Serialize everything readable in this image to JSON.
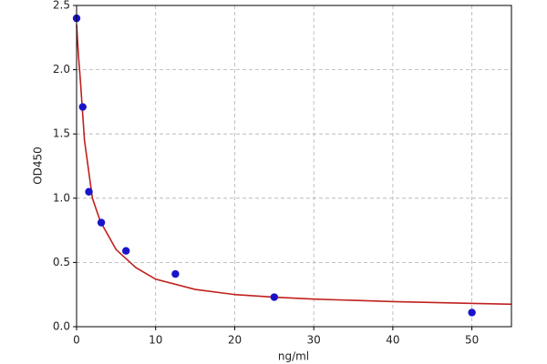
{
  "chart_data": {
    "type": "scatter",
    "xlabel": "ng/ml",
    "ylabel": "OD450",
    "xlim": [
      0,
      55
    ],
    "ylim": [
      0,
      2.5
    ],
    "xticks": [
      0,
      10,
      20,
      30,
      40,
      50
    ],
    "yticks": [
      {
        "value": 0,
        "label": "0.0"
      },
      0.5,
      {
        "value": 1,
        "label": "1.0"
      },
      1.5,
      {
        "value": 2,
        "label": "2.0"
      },
      2.5
    ],
    "grid": true,
    "series": [
      {
        "type": "scatter",
        "color": "#1a14c8",
        "x": [
          0,
          0.78,
          1.56,
          3.125,
          6.25,
          12.5,
          25,
          50
        ],
        "values": [
          2.4,
          1.71,
          1.05,
          0.81,
          0.59,
          0.41,
          0.23,
          0.11
        ]
      },
      {
        "type": "line",
        "color": "#c0201e",
        "x": [
          0,
          0.25,
          0.5,
          1,
          2,
          3,
          5,
          7.5,
          10,
          15,
          20,
          25,
          30,
          40,
          55
        ],
        "values": [
          2.35,
          2.1,
          1.9,
          1.45,
          1.0,
          0.82,
          0.6,
          0.46,
          0.37,
          0.29,
          0.25,
          0.23,
          0.215,
          0.195,
          0.175
        ]
      }
    ]
  }
}
